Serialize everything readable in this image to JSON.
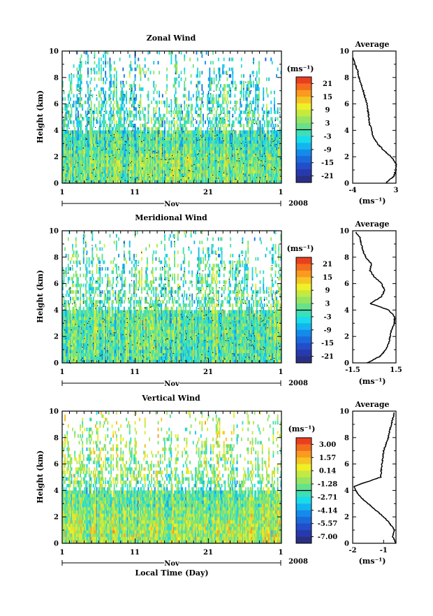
{
  "figure": {
    "x_axis_title": "Local Time (Day)",
    "month_label": "Nov",
    "year_label": "2008",
    "x_tick_labels": [
      "1",
      "11",
      "21",
      "1"
    ]
  },
  "chart_data": [
    {
      "type": "heatmap",
      "title": "Zonal Wind",
      "ylabel": "Height (km)",
      "xlabel": "Nov",
      "ylim": [
        0,
        10
      ],
      "xlim_days": [
        1,
        31
      ],
      "colorbar": {
        "unit_label": "(ms⁻¹)",
        "ticks": [
          "21",
          "15",
          "9",
          "3",
          "-3",
          "-9",
          "-15",
          "-21"
        ],
        "range": [
          -24,
          24
        ]
      },
      "average_profile": {
        "title": "Average",
        "xlabel": "(ms⁻¹)",
        "xlim": [
          -4,
          3
        ],
        "x_tick_labels": [
          "-4",
          "3"
        ],
        "height_km": [
          0,
          0.5,
          1,
          1.5,
          2,
          2.5,
          3,
          3.5,
          4,
          4.5,
          5,
          6,
          7,
          8,
          8.5,
          9,
          9.5
        ],
        "values": [
          1.3,
          2.6,
          3.0,
          3.0,
          2.2,
          1.0,
          0.0,
          -0.7,
          -0.9,
          -1.3,
          -1.4,
          -1.7,
          -2.3,
          -3.0,
          -3.2,
          -3.6,
          -4.0
        ]
      }
    },
    {
      "type": "heatmap",
      "title": "Meridional Wind",
      "ylabel": "Height (km)",
      "xlabel": "Nov",
      "ylim": [
        0,
        10
      ],
      "xlim_days": [
        1,
        31
      ],
      "colorbar": {
        "unit_label": "(ms⁻¹)",
        "ticks": [
          "21",
          "15",
          "9",
          "3",
          "-3",
          "-9",
          "-15",
          "-21"
        ],
        "range": [
          -24,
          24
        ]
      },
      "average_profile": {
        "title": "Average",
        "xlabel": "(ms⁻¹)",
        "xlim": [
          -1.5,
          1.5
        ],
        "x_tick_labels": [
          "-1.5",
          "1.5"
        ],
        "height_km": [
          0,
          0.5,
          1,
          1.5,
          2,
          2.5,
          3,
          3.5,
          4,
          4.5,
          5,
          5.5,
          6,
          6.5,
          7,
          7.5,
          8,
          8.5,
          9,
          9.5,
          9.9
        ],
        "values": [
          -0.5,
          0.4,
          0.8,
          1.0,
          1.1,
          1.2,
          1.4,
          1.4,
          1.0,
          -0.3,
          0.5,
          0.7,
          0.5,
          0.0,
          -0.3,
          -0.2,
          -0.6,
          -0.8,
          -0.9,
          -1.0,
          -1.3
        ]
      }
    },
    {
      "type": "heatmap",
      "title": "Vertical Wind",
      "ylabel": "Height (km)",
      "xlabel": "Nov",
      "ylim": [
        0,
        10
      ],
      "xlim_days": [
        1,
        31
      ],
      "colorbar": {
        "unit_label": "(ms⁻¹)",
        "ticks": [
          "3.00",
          "1.57",
          "0.14",
          "-1.28",
          "-2.71",
          "-4.14",
          "-5.57",
          "-7.00"
        ],
        "range": [
          -7.7,
          3.7
        ]
      },
      "average_profile": {
        "title": "Average",
        "xlabel": "(ms⁻¹)",
        "xlim": [
          -2,
          -0.6
        ],
        "x_tick_labels": [
          "-2",
          "-1"
        ],
        "height_km": [
          0,
          0.5,
          1,
          1.5,
          2,
          2.5,
          3,
          3.5,
          4,
          4.3,
          4.6,
          5,
          6,
          7,
          8,
          8.5,
          9,
          9.5,
          9.9
        ],
        "values": [
          -0.6,
          -0.7,
          -0.65,
          -0.8,
          -1.0,
          -1.25,
          -1.5,
          -1.75,
          -1.9,
          -1.95,
          -1.6,
          -1.1,
          -1.05,
          -1.0,
          -0.85,
          -0.8,
          -0.75,
          -0.7,
          -0.65
        ]
      }
    }
  ]
}
